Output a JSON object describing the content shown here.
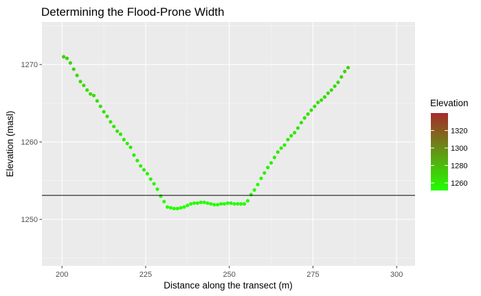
{
  "chart_data": {
    "type": "scatter",
    "title": "Determining the Flood-Prone Width",
    "xlabel": "Distance along the transect (m)",
    "ylabel": "Elevation (masl)",
    "xlim": [
      194,
      305.5
    ],
    "ylim": [
      1244,
      1275.5
    ],
    "x_ticks": [
      200,
      225,
      250,
      275,
      300
    ],
    "y_ticks": [
      1250,
      1260,
      1270
    ],
    "grid": true,
    "hline": 1253.1,
    "color_scale": {
      "title": "Elevation",
      "low": 1251.4,
      "high": 1340,
      "low_color": "#22ff00",
      "high_color": "#a52a2a",
      "ticks": [
        1260,
        1280,
        1300,
        1320
      ]
    },
    "legend_position": "right",
    "points": [
      {
        "x": 200.5,
        "y": 1271.0
      },
      {
        "x": 201.5,
        "y": 1270.8
      },
      {
        "x": 202.5,
        "y": 1270.2
      },
      {
        "x": 203.5,
        "y": 1269.4
      },
      {
        "x": 204.5,
        "y": 1268.6
      },
      {
        "x": 205.5,
        "y": 1267.8
      },
      {
        "x": 206.5,
        "y": 1267.3
      },
      {
        "x": 207.5,
        "y": 1266.7
      },
      {
        "x": 208.5,
        "y": 1266.2
      },
      {
        "x": 209.5,
        "y": 1266.0
      },
      {
        "x": 210.5,
        "y": 1265.3
      },
      {
        "x": 211.5,
        "y": 1264.6
      },
      {
        "x": 212.5,
        "y": 1263.9
      },
      {
        "x": 213.5,
        "y": 1263.3
      },
      {
        "x": 214.5,
        "y": 1262.6
      },
      {
        "x": 215.5,
        "y": 1262.0
      },
      {
        "x": 216.5,
        "y": 1261.4
      },
      {
        "x": 217.5,
        "y": 1261.0
      },
      {
        "x": 218.5,
        "y": 1260.3
      },
      {
        "x": 219.5,
        "y": 1259.8
      },
      {
        "x": 220.5,
        "y": 1259.3
      },
      {
        "x": 221.5,
        "y": 1258.3
      },
      {
        "x": 222.5,
        "y": 1257.6
      },
      {
        "x": 223.5,
        "y": 1256.9
      },
      {
        "x": 224.5,
        "y": 1256.4
      },
      {
        "x": 225.5,
        "y": 1255.9
      },
      {
        "x": 226.5,
        "y": 1255.2
      },
      {
        "x": 227.5,
        "y": 1254.6
      },
      {
        "x": 228.5,
        "y": 1253.9
      },
      {
        "x": 229.5,
        "y": 1253.0
      },
      {
        "x": 230.5,
        "y": 1252.3
      },
      {
        "x": 231.5,
        "y": 1251.6
      },
      {
        "x": 232.5,
        "y": 1251.5
      },
      {
        "x": 233.5,
        "y": 1251.4
      },
      {
        "x": 234.5,
        "y": 1251.4
      },
      {
        "x": 235.5,
        "y": 1251.5
      },
      {
        "x": 236.5,
        "y": 1251.6
      },
      {
        "x": 237.5,
        "y": 1251.8
      },
      {
        "x": 238.5,
        "y": 1252.0
      },
      {
        "x": 239.5,
        "y": 1252.1
      },
      {
        "x": 240.5,
        "y": 1252.1
      },
      {
        "x": 241.5,
        "y": 1252.2
      },
      {
        "x": 242.5,
        "y": 1252.2
      },
      {
        "x": 243.5,
        "y": 1252.1
      },
      {
        "x": 244.5,
        "y": 1252.0
      },
      {
        "x": 245.5,
        "y": 1251.9
      },
      {
        "x": 246.5,
        "y": 1251.9
      },
      {
        "x": 247.5,
        "y": 1252.0
      },
      {
        "x": 248.5,
        "y": 1252.0
      },
      {
        "x": 249.5,
        "y": 1252.1
      },
      {
        "x": 250.5,
        "y": 1252.1
      },
      {
        "x": 251.5,
        "y": 1252.0
      },
      {
        "x": 252.5,
        "y": 1252.0
      },
      {
        "x": 253.5,
        "y": 1252.0
      },
      {
        "x": 254.5,
        "y": 1252.0
      },
      {
        "x": 255.5,
        "y": 1252.4
      },
      {
        "x": 256.5,
        "y": 1253.2
      },
      {
        "x": 257.5,
        "y": 1253.8
      },
      {
        "x": 258.5,
        "y": 1254.5
      },
      {
        "x": 259.5,
        "y": 1255.3
      },
      {
        "x": 260.5,
        "y": 1256.0
      },
      {
        "x": 261.5,
        "y": 1256.7
      },
      {
        "x": 262.5,
        "y": 1257.3
      },
      {
        "x": 263.5,
        "y": 1258.0
      },
      {
        "x": 264.5,
        "y": 1258.7
      },
      {
        "x": 265.5,
        "y": 1259.2
      },
      {
        "x": 266.5,
        "y": 1259.6
      },
      {
        "x": 267.5,
        "y": 1260.3
      },
      {
        "x": 268.5,
        "y": 1260.8
      },
      {
        "x": 269.5,
        "y": 1261.2
      },
      {
        "x": 270.5,
        "y": 1261.8
      },
      {
        "x": 271.5,
        "y": 1262.5
      },
      {
        "x": 272.5,
        "y": 1263.1
      },
      {
        "x": 273.5,
        "y": 1263.6
      },
      {
        "x": 274.5,
        "y": 1264.1
      },
      {
        "x": 275.5,
        "y": 1264.6
      },
      {
        "x": 276.5,
        "y": 1265.1
      },
      {
        "x": 277.5,
        "y": 1265.4
      },
      {
        "x": 278.5,
        "y": 1265.8
      },
      {
        "x": 279.5,
        "y": 1266.3
      },
      {
        "x": 280.5,
        "y": 1266.7
      },
      {
        "x": 281.5,
        "y": 1267.2
      },
      {
        "x": 282.5,
        "y": 1267.7
      },
      {
        "x": 283.5,
        "y": 1268.4
      },
      {
        "x": 284.5,
        "y": 1269.1
      },
      {
        "x": 285.5,
        "y": 1269.6
      }
    ]
  }
}
